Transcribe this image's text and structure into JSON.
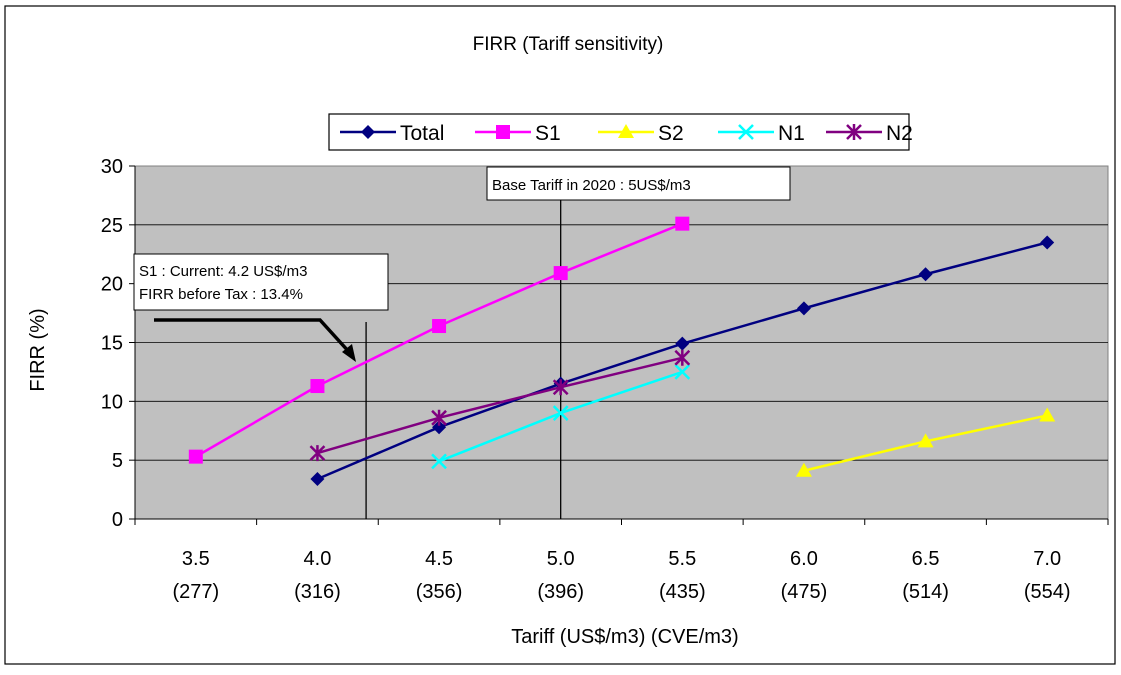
{
  "chart_data": {
    "type": "line",
    "title": "FIRR (Tariff sensitivity)",
    "xlabel": "Tariff (US$/m3) (CVE/m3)",
    "ylabel": "FIRR (%)",
    "categories": [
      "3.5",
      "4.0",
      "4.5",
      "5.0",
      "5.5",
      "6.0",
      "6.5",
      "7.0"
    ],
    "category_sublabels": [
      "(277)",
      "(316)",
      "(356)",
      "(396)",
      "(435)",
      "(475)",
      "(514)",
      "(554)"
    ],
    "ylim": [
      0,
      30
    ],
    "yticks": [
      "0",
      "5",
      "10",
      "15",
      "20",
      "25",
      "30"
    ],
    "grid": true,
    "legend_position": "top",
    "series": [
      {
        "name": "Total",
        "color": "#000080",
        "marker": "diamond",
        "values": [
          null,
          3.4,
          7.8,
          11.5,
          14.9,
          17.9,
          20.8,
          23.5
        ]
      },
      {
        "name": "S1",
        "color": "#FF00FF",
        "marker": "square",
        "values": [
          5.3,
          11.3,
          16.4,
          20.9,
          25.1,
          null,
          null,
          null
        ]
      },
      {
        "name": "S2",
        "color": "#FFFF00",
        "marker": "triangle",
        "values": [
          null,
          null,
          null,
          null,
          null,
          4.1,
          6.6,
          8.8
        ]
      },
      {
        "name": "N1",
        "color": "#00FFFF",
        "marker": "x",
        "values": [
          null,
          null,
          4.9,
          9.0,
          12.5,
          null,
          null,
          null
        ]
      },
      {
        "name": "N2",
        "color": "#800080",
        "marker": "star",
        "values": [
          null,
          5.6,
          8.6,
          11.2,
          13.7,
          null,
          null,
          null
        ]
      }
    ],
    "annotations": [
      {
        "type": "vline",
        "x": 4.2,
        "lines": [
          "S1 : Current: 4.2 US$/m3",
          "FIRR before Tax : 13.4%"
        ]
      },
      {
        "type": "vline",
        "x": 5.0,
        "lines": [
          "Base Tariff in 2020 : 5US$/m3"
        ]
      }
    ]
  }
}
